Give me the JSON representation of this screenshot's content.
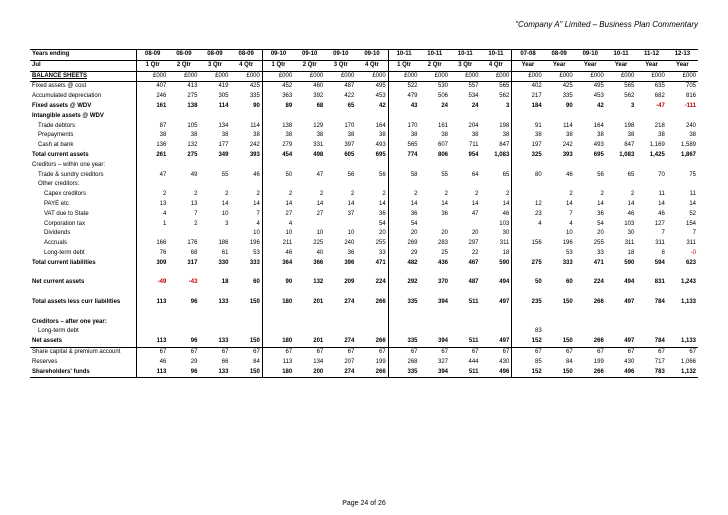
{
  "header": "\"Company A\" Limited – Business Plan Commentary",
  "footer": "Page 24 of 26",
  "periods_top": [
    "08-09",
    "08-09",
    "08-09",
    "08-09",
    "09-10",
    "09-10",
    "09-10",
    "09-10",
    "10-11",
    "10-11",
    "10-11",
    "10-11",
    "07-08",
    "08-09",
    "09-10",
    "10-11",
    "11-12",
    "12-13"
  ],
  "periods_row1_label": "Years ending",
  "periods_row2_label": "Jul",
  "periods_sub": [
    "1 Qtr",
    "2 Qtr",
    "3 Qtr",
    "4 Qtr",
    "1 Qtr",
    "2 Qtr",
    "3 Qtr",
    "4 Qtr",
    "1 Qtr",
    "2 Qtr",
    "3 Qtr",
    "4 Qtr",
    "Year",
    "Year",
    "Year",
    "Year",
    "Year",
    "Year"
  ],
  "units_row_label": "BALANCE SHEETS",
  "units": [
    "£000",
    "£000",
    "£000",
    "£000",
    "£000",
    "£000",
    "£000",
    "£000",
    "£000",
    "£000",
    "£000",
    "£000",
    "£000",
    "£000",
    "£000",
    "£000",
    "£000",
    "£000"
  ],
  "rows": [
    {
      "label": "Fixed assets @ cost",
      "vals": [
        "407",
        "413",
        "419",
        "425",
        "452",
        "460",
        "487",
        "495",
        "522",
        "530",
        "557",
        "565",
        "402",
        "425",
        "495",
        "565",
        "635",
        "705"
      ]
    },
    {
      "label": "Accumulated depreciation",
      "vals": [
        "246",
        "275",
        "305",
        "335",
        "363",
        "392",
        "422",
        "453",
        "479",
        "506",
        "534",
        "562",
        "217",
        "335",
        "453",
        "562",
        "682",
        "816"
      ]
    },
    {
      "label": "Fixed assets @ WDV",
      "bold": true,
      "vals": [
        "161",
        "138",
        "114",
        "90",
        "89",
        "68",
        "65",
        "42",
        "43",
        "24",
        "24",
        "3",
        "184",
        "90",
        "42",
        "3",
        "-47",
        "-111"
      ]
    },
    {
      "label": "Intangible assets @ WDV",
      "bold": true,
      "vals": [
        "",
        "",
        "",
        "",
        "",
        "",
        "",
        "",
        "",
        "",
        "",
        "",
        "",
        "",
        "",
        "",
        "",
        ""
      ]
    },
    {
      "label": " Trade debtors",
      "vals": [
        "87",
        "105",
        "134",
        "114",
        "138",
        "129",
        "170",
        "164",
        "170",
        "161",
        "204",
        "198",
        "91",
        "114",
        "164",
        "198",
        "218",
        "240"
      ]
    },
    {
      "label": " Prepayments",
      "vals": [
        "38",
        "38",
        "38",
        "38",
        "38",
        "38",
        "38",
        "38",
        "38",
        "38",
        "38",
        "38",
        "38",
        "38",
        "38",
        "38",
        "38",
        "38"
      ]
    },
    {
      "label": " Cash at bank",
      "vals": [
        "136",
        "132",
        "177",
        "242",
        "279",
        "331",
        "397",
        "493",
        "565",
        "607",
        "711",
        "847",
        "197",
        "242",
        "493",
        "847",
        "1,169",
        "1,589"
      ]
    },
    {
      "label": "Total current assets",
      "bold": true,
      "vals": [
        "261",
        "275",
        "349",
        "393",
        "454",
        "498",
        "605",
        "695",
        "774",
        "806",
        "954",
        "1,083",
        "325",
        "393",
        "695",
        "1,083",
        "1,425",
        "1,867"
      ]
    },
    {
      "label": "Creditors – within one year:",
      "vals": [
        "",
        "",
        "",
        "",
        "",
        "",
        "",
        "",
        "",
        "",
        "",
        "",
        "",
        "",
        "",
        "",
        "",
        ""
      ]
    },
    {
      "label": " Trade & sundry creditors",
      "vals": [
        "47",
        "49",
        "55",
        "46",
        "50",
        "47",
        "56",
        "56",
        "58",
        "55",
        "64",
        "65",
        "80",
        "46",
        "56",
        "65",
        "70",
        "75"
      ]
    },
    {
      "label": " Other creditors:",
      "vals": [
        "",
        "",
        "",
        "",
        "",
        "",
        "",
        "",
        "",
        "",
        "",
        "",
        "",
        "",
        "",
        "",
        "",
        ""
      ]
    },
    {
      "label": "  Capex creditors",
      "vals": [
        "2",
        "2",
        "2",
        "2",
        "2",
        "2",
        "2",
        "2",
        "2",
        "2",
        "2",
        "2",
        "",
        "2",
        "2",
        "2",
        "11",
        "11"
      ]
    },
    {
      "label": "  PAYE etc",
      "vals": [
        "13",
        "13",
        "14",
        "14",
        "14",
        "14",
        "14",
        "14",
        "14",
        "14",
        "14",
        "14",
        "12",
        "14",
        "14",
        "14",
        "14",
        "14"
      ]
    },
    {
      "label": "  VAT due to State",
      "vals": [
        "4",
        "7",
        "10",
        "7",
        "27",
        "27",
        "37",
        "36",
        "36",
        "36",
        "47",
        "46",
        "23",
        "7",
        "36",
        "46",
        "46",
        "52"
      ]
    },
    {
      "label": "  Corporation tax",
      "vals": [
        "1",
        "2",
        "3",
        "4",
        "4",
        "",
        "",
        "54",
        "54",
        "",
        "",
        "103",
        "4",
        "4",
        "54",
        "103",
        "127",
        "154"
      ]
    },
    {
      "label": "  Dividends",
      "vals": [
        "",
        "",
        "",
        "10",
        "10",
        "10",
        "10",
        "20",
        "20",
        "20",
        "20",
        "30",
        "",
        "10",
        "20",
        "30",
        "7",
        "7"
      ]
    },
    {
      "label": "  Accruals",
      "vals": [
        "166",
        "176",
        "186",
        "196",
        "211",
        "225",
        "240",
        "255",
        "269",
        "283",
        "297",
        "311",
        "156",
        "196",
        "255",
        "311",
        "311",
        "311"
      ]
    },
    {
      "label": "   Long-term debt",
      "vals": [
        "76",
        "68",
        "61",
        "53",
        "46",
        "40",
        "36",
        "33",
        "29",
        "25",
        "22",
        "18",
        "",
        "53",
        "33",
        "18",
        "8",
        "-0"
      ],
      "neg": [
        false,
        false,
        false,
        false,
        false,
        false,
        false,
        false,
        false,
        false,
        false,
        false,
        false,
        false,
        false,
        false,
        false,
        true
      ]
    },
    {
      "label": "Total current liabilities",
      "bold": true,
      "vals": [
        "309",
        "317",
        "330",
        "333",
        "364",
        "366",
        "396",
        "471",
        "482",
        "436",
        "467",
        "590",
        "275",
        "333",
        "471",
        "590",
        "594",
        "623"
      ]
    },
    {
      "label": "",
      "spacer": true
    },
    {
      "label": "Net current assets",
      "bold": true,
      "vals": [
        "-49",
        "-43",
        "18",
        "60",
        "90",
        "132",
        "209",
        "224",
        "292",
        "370",
        "487",
        "494",
        "50",
        "60",
        "224",
        "494",
        "831",
        "1,243"
      ],
      "neg": [
        true,
        true,
        false,
        false,
        false,
        false,
        false,
        false,
        false,
        false,
        false,
        false,
        false,
        false,
        false,
        false,
        false,
        false
      ]
    },
    {
      "label": "",
      "spacer": true
    },
    {
      "label": "Total assets less curr liabilities",
      "bold": true,
      "vals": [
        "113",
        "96",
        "133",
        "150",
        "180",
        "201",
        "274",
        "266",
        "335",
        "394",
        "511",
        "497",
        "235",
        "150",
        "266",
        "497",
        "784",
        "1,133"
      ]
    },
    {
      "label": "",
      "spacer": true
    },
    {
      "label": "Creditors – after one year:",
      "bold": true,
      "vals": [
        "",
        "",
        "",
        "",
        "",
        "",
        "",
        "",
        "",
        "",
        "",
        "",
        "",
        "",
        "",
        "",
        "",
        ""
      ]
    },
    {
      "label": " Long-term debt",
      "vals": [
        "",
        "",
        "",
        "",
        "",
        "",
        "",
        "",
        "",
        "",
        "",
        "",
        "83",
        "",
        "",
        "",
        "",
        ""
      ]
    },
    {
      "label": "Net assets",
      "bold": true,
      "uline": true,
      "vals": [
        "113",
        "96",
        "133",
        "150",
        "180",
        "201",
        "274",
        "266",
        "335",
        "394",
        "511",
        "497",
        "152",
        "150",
        "266",
        "497",
        "784",
        "1,133"
      ]
    },
    {
      "label": "Share capital & premium account",
      "vals": [
        "67",
        "67",
        "67",
        "67",
        "67",
        "67",
        "67",
        "67",
        "67",
        "67",
        "67",
        "67",
        "67",
        "67",
        "67",
        "67",
        "67",
        "67"
      ]
    },
    {
      "label": "Reserves",
      "vals": [
        "46",
        "29",
        "66",
        "84",
        "113",
        "134",
        "207",
        "199",
        "268",
        "327",
        "444",
        "430",
        "85",
        "84",
        "199",
        "430",
        "717",
        "1,066"
      ]
    },
    {
      "label": "Shareholders' funds",
      "bold": true,
      "uline": true,
      "vals": [
        "113",
        "96",
        "133",
        "150",
        "180",
        "200",
        "274",
        "266",
        "335",
        "394",
        "511",
        "496",
        "152",
        "150",
        "266",
        "496",
        "783",
        "1,132"
      ]
    }
  ]
}
